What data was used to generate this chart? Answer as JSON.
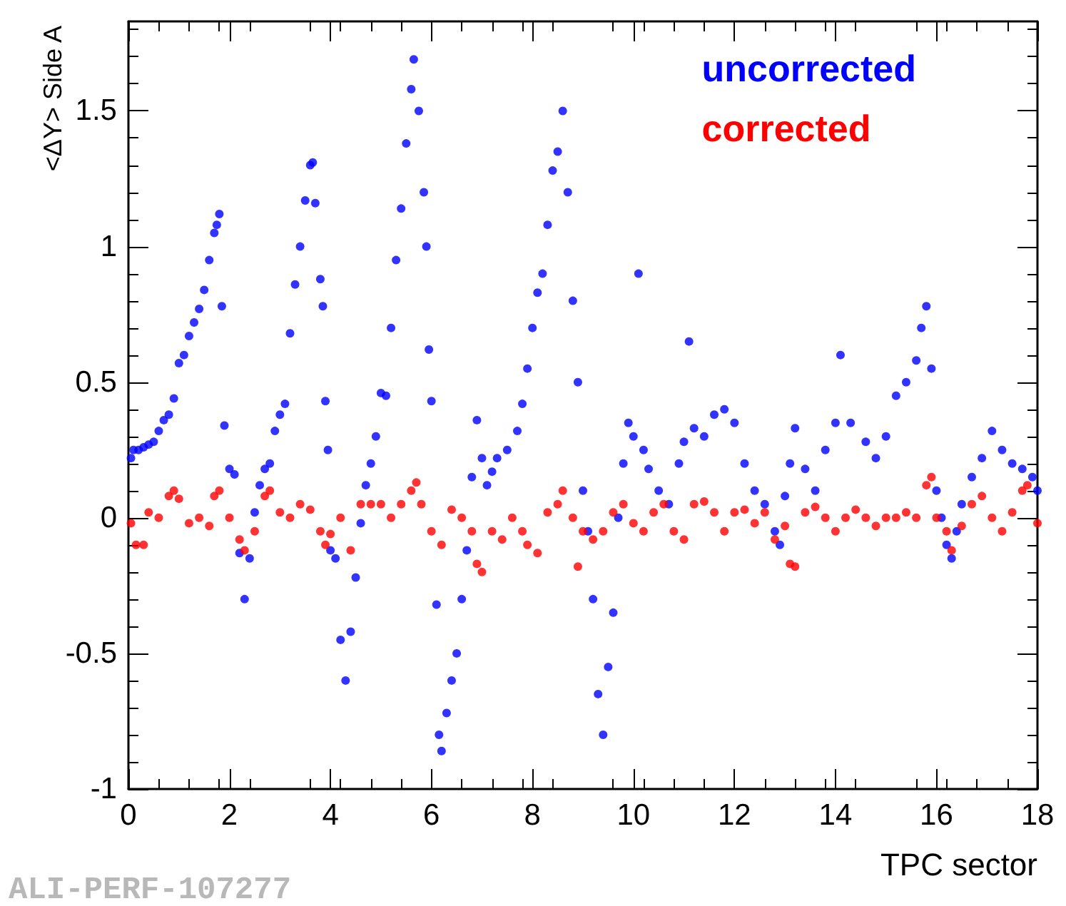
{
  "chart_data": {
    "type": "scatter",
    "xlabel": "TPC sector",
    "ylabel": "<ΔY> Side A",
    "annotations": [
      "ALI-PERF-107277"
    ],
    "xlim": [
      0,
      18
    ],
    "ylim": [
      -1,
      1.83
    ],
    "xticks": [
      0,
      2,
      4,
      6,
      8,
      10,
      12,
      14,
      16,
      18
    ],
    "yticks": [
      -1,
      -0.5,
      0,
      0.5,
      1,
      1.5
    ],
    "legend": "top right",
    "marker": "circle",
    "grid": false,
    "series": [
      {
        "name": "uncorrected",
        "color": "#0000ff",
        "x": [
          0.05,
          0.1,
          0.2,
          0.3,
          0.4,
          0.5,
          0.6,
          0.7,
          0.8,
          0.9,
          1.0,
          1.1,
          1.2,
          1.3,
          1.4,
          1.5,
          1.6,
          1.7,
          1.75,
          1.8,
          1.85,
          1.9,
          2.0,
          2.1,
          2.2,
          2.3,
          2.4,
          2.5,
          2.6,
          2.7,
          2.8,
          2.9,
          3.0,
          3.1,
          3.2,
          3.3,
          3.4,
          3.5,
          3.6,
          3.65,
          3.7,
          3.8,
          3.85,
          3.9,
          3.95,
          4.0,
          4.1,
          4.2,
          4.3,
          4.4,
          4.5,
          4.6,
          4.7,
          4.8,
          4.9,
          5.0,
          5.1,
          5.2,
          5.3,
          5.4,
          5.5,
          5.6,
          5.65,
          5.75,
          5.85,
          5.9,
          5.95,
          6.0,
          6.1,
          6.15,
          6.2,
          6.3,
          6.4,
          6.5,
          6.6,
          6.7,
          6.8,
          6.9,
          7.0,
          7.1,
          7.2,
          7.3,
          7.5,
          7.7,
          7.8,
          7.9,
          8.0,
          8.1,
          8.2,
          8.3,
          8.4,
          8.5,
          8.6,
          8.7,
          8.8,
          8.9,
          9.0,
          9.1,
          9.2,
          9.3,
          9.4,
          9.5,
          9.6,
          9.7,
          9.8,
          9.9,
          10.0,
          10.1,
          10.2,
          10.3,
          10.5,
          10.7,
          10.9,
          11.0,
          11.1,
          11.2,
          11.4,
          11.6,
          11.8,
          12.0,
          12.2,
          12.4,
          12.6,
          12.8,
          12.9,
          13.0,
          13.1,
          13.2,
          13.4,
          13.6,
          13.8,
          14.0,
          14.1,
          14.3,
          14.6,
          14.8,
          15.0,
          15.2,
          15.4,
          15.6,
          15.7,
          15.8,
          15.9,
          16.0,
          16.1,
          16.2,
          16.3,
          16.4,
          16.5,
          16.7,
          16.9,
          17.1,
          17.3,
          17.5,
          17.7,
          17.9,
          18.0
        ],
        "values": [
          0.22,
          0.25,
          0.25,
          0.26,
          0.27,
          0.28,
          0.32,
          0.36,
          0.38,
          0.44,
          0.57,
          0.6,
          0.67,
          0.72,
          0.77,
          0.84,
          0.95,
          1.05,
          1.08,
          1.12,
          0.78,
          0.34,
          0.18,
          0.16,
          -0.13,
          -0.3,
          -0.15,
          0.02,
          0.12,
          0.18,
          0.2,
          0.32,
          0.38,
          0.42,
          0.68,
          0.86,
          1.0,
          1.17,
          1.3,
          1.31,
          1.16,
          0.88,
          0.78,
          0.43,
          0.25,
          -0.12,
          -0.15,
          -0.45,
          -0.6,
          -0.42,
          -0.22,
          -0.02,
          0.12,
          0.2,
          0.3,
          0.46,
          0.45,
          0.7,
          0.95,
          1.14,
          1.38,
          1.58,
          1.69,
          1.5,
          1.2,
          1.0,
          0.62,
          0.43,
          -0.32,
          -0.8,
          -0.86,
          -0.72,
          -0.6,
          -0.5,
          -0.3,
          -0.12,
          0.15,
          0.36,
          0.22,
          0.12,
          0.17,
          0.22,
          0.25,
          0.32,
          0.42,
          0.55,
          0.7,
          0.83,
          0.9,
          1.08,
          1.28,
          1.35,
          1.5,
          1.2,
          0.8,
          0.5,
          0.1,
          -0.05,
          -0.3,
          -0.65,
          -0.8,
          -0.55,
          -0.35,
          0.0,
          0.2,
          0.35,
          0.3,
          0.9,
          0.25,
          0.18,
          0.1,
          0.05,
          0.2,
          0.28,
          0.65,
          0.33,
          0.3,
          0.38,
          0.4,
          0.35,
          0.2,
          0.1,
          0.05,
          -0.05,
          -0.1,
          0.08,
          0.2,
          0.33,
          0.18,
          0.1,
          0.25,
          0.35,
          0.6,
          0.35,
          0.28,
          0.22,
          0.3,
          0.45,
          0.5,
          0.58,
          0.7,
          0.78,
          0.55,
          0.1,
          0.0,
          -0.1,
          -0.15,
          -0.05,
          0.05,
          0.15,
          0.22,
          0.32,
          0.25,
          0.2,
          0.18,
          0.15,
          0.1
        ]
      },
      {
        "name": "corrected",
        "color": "#ff0000",
        "x": [
          0.05,
          0.15,
          0.3,
          0.4,
          0.6,
          0.8,
          0.9,
          1.0,
          1.2,
          1.4,
          1.6,
          1.7,
          1.8,
          2.0,
          2.2,
          2.3,
          2.5,
          2.7,
          2.8,
          3.0,
          3.2,
          3.4,
          3.6,
          3.8,
          3.9,
          4.0,
          4.2,
          4.4,
          4.6,
          4.8,
          5.0,
          5.2,
          5.4,
          5.6,
          5.7,
          5.8,
          6.0,
          6.2,
          6.4,
          6.6,
          6.8,
          6.9,
          7.0,
          7.2,
          7.4,
          7.6,
          7.8,
          7.9,
          8.1,
          8.3,
          8.5,
          8.6,
          8.8,
          8.9,
          9.0,
          9.2,
          9.4,
          9.6,
          9.8,
          10.0,
          10.2,
          10.4,
          10.6,
          10.8,
          11.0,
          11.2,
          11.4,
          11.6,
          11.8,
          12.0,
          12.2,
          12.4,
          12.6,
          12.8,
          13.0,
          13.1,
          13.2,
          13.4,
          13.6,
          13.8,
          14.0,
          14.2,
          14.4,
          14.6,
          14.8,
          15.0,
          15.2,
          15.4,
          15.6,
          15.8,
          15.9,
          16.0,
          16.2,
          16.3,
          16.5,
          16.7,
          16.9,
          17.1,
          17.3,
          17.5,
          17.7,
          17.8,
          18.0
        ],
        "values": [
          -0.02,
          -0.1,
          -0.1,
          0.02,
          0.0,
          0.08,
          0.1,
          0.07,
          -0.02,
          0.0,
          -0.03,
          0.08,
          0.1,
          0.0,
          -0.08,
          -0.12,
          -0.05,
          0.08,
          0.1,
          0.02,
          0.0,
          0.05,
          0.03,
          -0.05,
          -0.1,
          -0.06,
          0.0,
          -0.12,
          0.05,
          0.05,
          0.05,
          0.0,
          0.05,
          0.1,
          0.13,
          0.05,
          -0.05,
          -0.1,
          0.03,
          0.0,
          -0.05,
          -0.17,
          -0.2,
          -0.05,
          -0.08,
          0.0,
          -0.05,
          -0.1,
          -0.13,
          0.02,
          0.05,
          0.1,
          0.0,
          -0.18,
          -0.05,
          -0.08,
          -0.05,
          0.02,
          0.05,
          -0.02,
          -0.05,
          0.02,
          0.05,
          -0.05,
          -0.08,
          0.05,
          0.06,
          0.02,
          -0.05,
          0.02,
          0.03,
          -0.02,
          0.02,
          -0.08,
          -0.03,
          -0.17,
          -0.18,
          0.02,
          0.04,
          0.0,
          -0.05,
          0.0,
          0.03,
          0.0,
          -0.03,
          0.0,
          0.0,
          0.02,
          0.0,
          0.12,
          0.15,
          0.0,
          -0.05,
          -0.12,
          -0.03,
          0.05,
          0.08,
          0.0,
          -0.05,
          0.02,
          0.1,
          0.12,
          -0.02
        ]
      }
    ]
  }
}
